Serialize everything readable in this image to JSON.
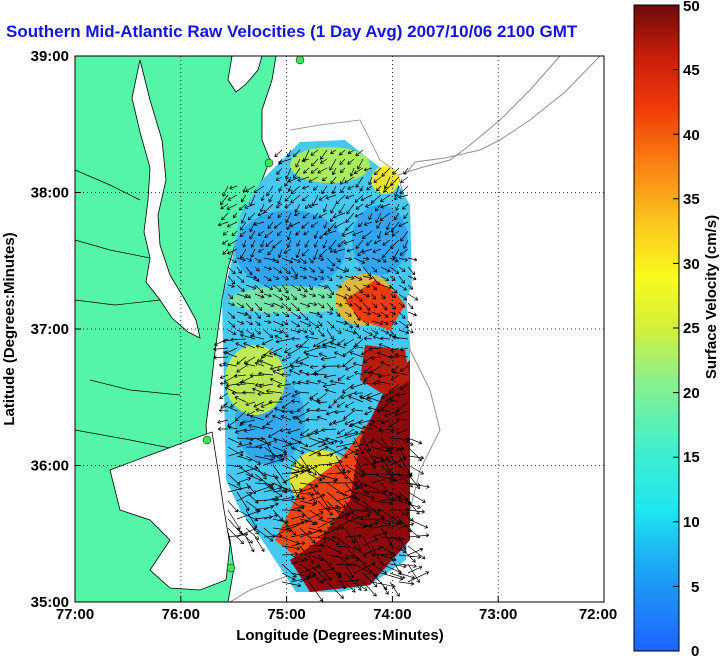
{
  "title": "Southern Mid-Atlantic Raw Velocities (1 Day Avg) 2007/10/06 2100 GMT",
  "x_axis": {
    "label": "Longitude (Degrees:Minutes)",
    "ticks": [
      "77:00",
      "76:00",
      "75:00",
      "74:00",
      "73:00",
      "72:00"
    ]
  },
  "y_axis": {
    "label": "Latitude (Degrees:Minutes)",
    "ticks": [
      "39:00",
      "38:00",
      "37:00",
      "36:00",
      "35:00"
    ]
  },
  "colorbar": {
    "label": "Surface Velocity (cm/s)",
    "ticks": [
      "50",
      "45",
      "40",
      "35",
      "30",
      "25",
      "20",
      "15",
      "10",
      "5",
      "0"
    ],
    "min": 0,
    "max": 50
  },
  "colors": {
    "land": "#55f5a8",
    "water": "#ffffff",
    "title": "#1414e0"
  }
}
